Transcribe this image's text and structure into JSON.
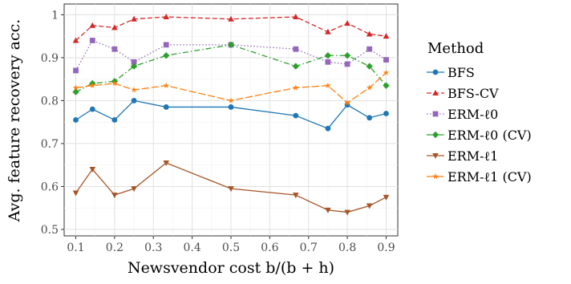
{
  "chart_data": {
    "type": "line",
    "xlabel": "Newsvendor cost  b/(b + h)",
    "ylabel": "Avg. feature recovery acc.",
    "xlim": [
      0.07,
      0.93
    ],
    "ylim": [
      0.485,
      1.025
    ],
    "xticks": [
      0.1,
      0.2,
      0.3,
      0.4,
      0.5,
      0.6,
      0.7,
      0.8,
      0.9
    ],
    "yticks": [
      0.5,
      0.6,
      0.7,
      0.8,
      0.9,
      1.0
    ],
    "xtick_labels": [
      "0.1",
      "0.2",
      "0.3",
      "0.4",
      "0.5",
      "0.6",
      "0.7",
      "0.8",
      "0.9"
    ],
    "ytick_labels": [
      "0.5",
      "0.6",
      "0.7",
      "0.8",
      "0.9",
      "1"
    ],
    "grid": true,
    "legend_title": "Method",
    "legend_position": "right",
    "x": [
      0.1,
      0.143,
      0.2,
      0.25,
      0.333,
      0.5,
      0.667,
      0.75,
      0.8,
      0.857,
      0.9
    ],
    "series": [
      {
        "name": "BFS",
        "color": "#1f77b4",
        "dash": "solid",
        "marker": "circle",
        "values": [
          0.755,
          0.78,
          0.755,
          0.8,
          0.785,
          0.785,
          0.765,
          0.735,
          0.79,
          0.76,
          0.77
        ]
      },
      {
        "name": "BFS-CV",
        "color": "#d62728",
        "dash": "dashed",
        "marker": "triangle-up",
        "values": [
          0.94,
          0.975,
          0.97,
          0.99,
          0.995,
          0.99,
          0.995,
          0.96,
          0.98,
          0.955,
          0.95
        ]
      },
      {
        "name": "ERM-ℓ0",
        "color": "#9467bd",
        "dash": "dotted",
        "marker": "square",
        "values": [
          0.87,
          0.94,
          0.92,
          0.89,
          0.93,
          0.93,
          0.92,
          0.89,
          0.885,
          0.92,
          0.895
        ]
      },
      {
        "name": "ERM-ℓ0 (CV)",
        "color": "#2ca02c",
        "dash": "dashdot",
        "marker": "diamond",
        "values": [
          0.82,
          0.84,
          0.845,
          0.88,
          0.905,
          0.93,
          0.88,
          0.905,
          0.905,
          0.88,
          0.835
        ]
      },
      {
        "name": "ERM-ℓ1",
        "color": "#a65628",
        "dash": "solid",
        "marker": "triangle-down",
        "values": [
          0.585,
          0.64,
          0.58,
          0.595,
          0.655,
          0.595,
          0.58,
          0.545,
          0.54,
          0.555,
          0.575
        ]
      },
      {
        "name": "ERM-ℓ1 (CV)",
        "color": "#ff7f0e",
        "dash": "longdash",
        "marker": "star",
        "values": [
          0.83,
          0.835,
          0.84,
          0.825,
          0.835,
          0.8,
          0.83,
          0.835,
          0.795,
          0.83,
          0.865
        ]
      }
    ]
  }
}
